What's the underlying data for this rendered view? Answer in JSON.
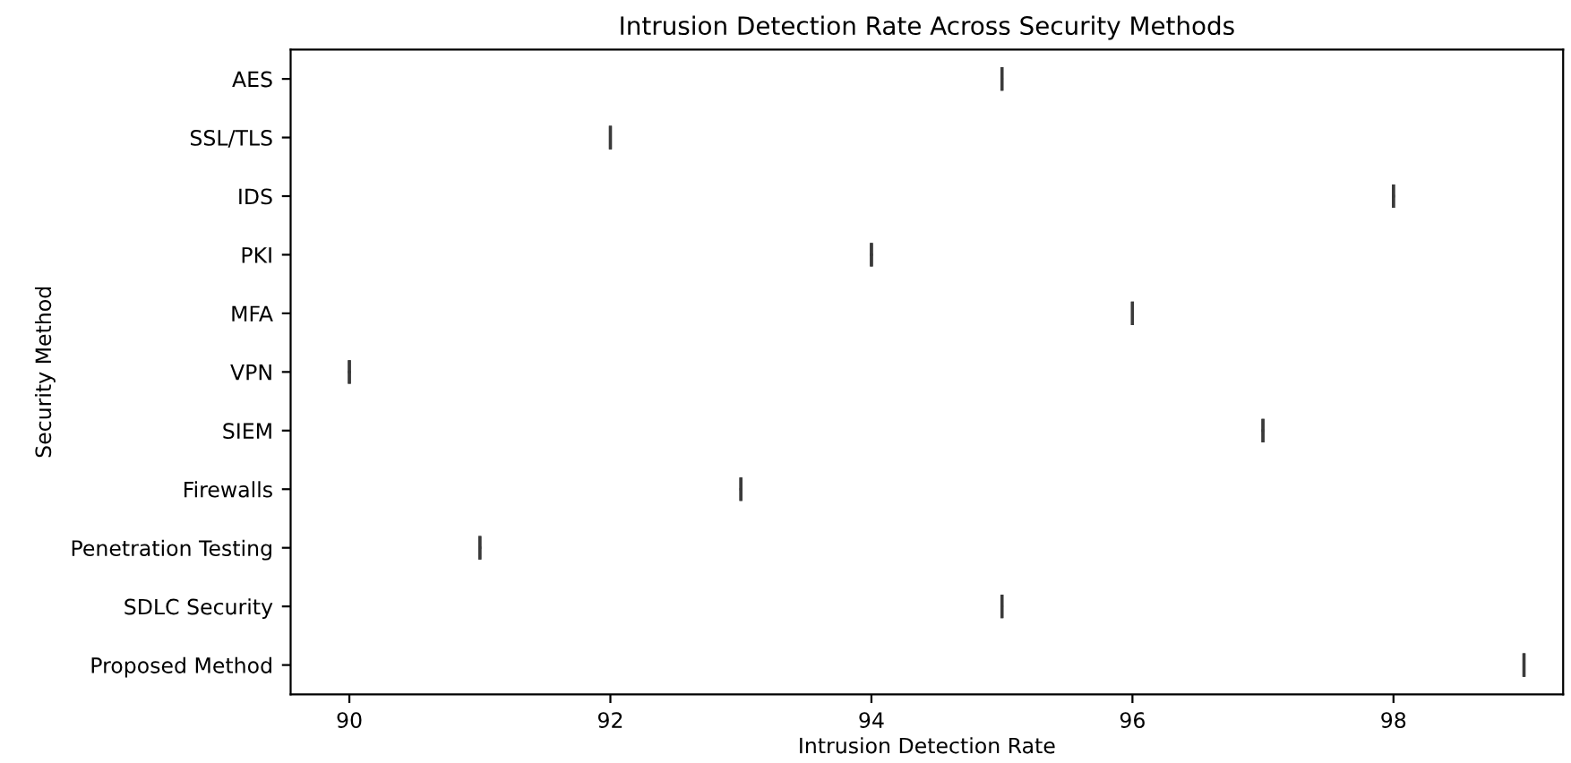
{
  "chart_data": {
    "type": "box",
    "title": "Intrusion Detection Rate Across Security Methods",
    "xlabel": "Intrusion Detection Rate",
    "ylabel": "Security Method",
    "orientation": "horizontal",
    "categories": [
      "AES",
      "SSL/TLS",
      "IDS",
      "PKI",
      "MFA",
      "VPN",
      "SIEM",
      "Firewalls",
      "Penetration Testing",
      "SDLC Security",
      "Proposed Method"
    ],
    "boxes": [
      {
        "low": 95,
        "q1": 95,
        "median": 95,
        "q3": 95,
        "high": 95
      },
      {
        "low": 92,
        "q1": 92,
        "median": 92,
        "q3": 92,
        "high": 92
      },
      {
        "low": 98,
        "q1": 98,
        "median": 98,
        "q3": 98,
        "high": 98
      },
      {
        "low": 94,
        "q1": 94,
        "median": 94,
        "q3": 94,
        "high": 94
      },
      {
        "low": 96,
        "q1": 96,
        "median": 96,
        "q3": 96,
        "high": 96
      },
      {
        "low": 90,
        "q1": 90,
        "median": 90,
        "q3": 90,
        "high": 90
      },
      {
        "low": 97,
        "q1": 97,
        "median": 97,
        "q3": 97,
        "high": 97
      },
      {
        "low": 93,
        "q1": 93,
        "median": 93,
        "q3": 93,
        "high": 93
      },
      {
        "low": 91,
        "q1": 91,
        "median": 91,
        "q3": 91,
        "high": 91
      },
      {
        "low": 95,
        "q1": 95,
        "median": 95,
        "q3": 95,
        "high": 95
      },
      {
        "low": 99,
        "q1": 99,
        "median": 99,
        "q3": 99,
        "high": 99
      }
    ],
    "color": "#3a3a3a",
    "xlim": [
      89.55,
      99.3
    ],
    "xticks": [
      90,
      92,
      94,
      96,
      98
    ],
    "grid": false,
    "legend": false
  }
}
